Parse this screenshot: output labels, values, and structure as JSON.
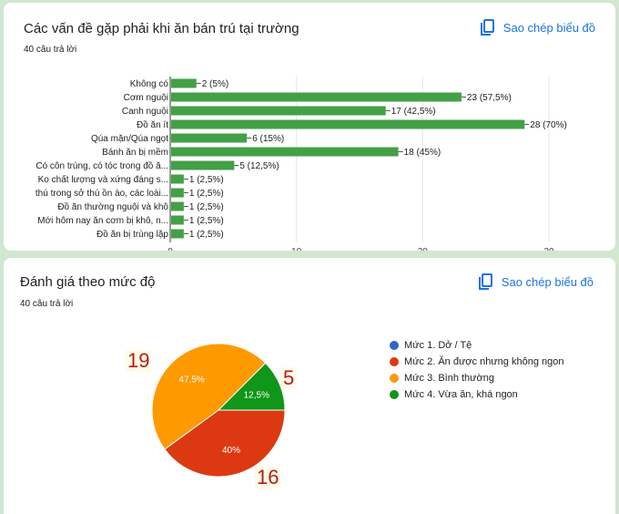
{
  "colors": {
    "accent": "#1a73e8",
    "bar": "#43a047",
    "annotation": "#b71c1c"
  },
  "card1": {
    "title": "Các vấn đề gặp phải khi ăn bán trú tại trường",
    "responses": "40 câu trả lời",
    "copy_label": "Sao chép biểu đồ",
    "copy_icon": "copy-icon"
  },
  "card2": {
    "title": "Đánh giá theo mức độ",
    "responses": "40 câu trả lời",
    "copy_label": "Sao chép biểu đồ",
    "copy_icon": "copy-icon",
    "annotations": [
      "19",
      "5",
      "16"
    ]
  },
  "chart_data": [
    {
      "type": "bar",
      "orientation": "horizontal",
      "categories": [
        "Không có",
        "Cơm nguội",
        "Canh nguội",
        "Đồ ăn ít",
        "Qúa mặn/Qúa ngọt",
        "Bánh ăn bị mềm",
        "Có côn trùng, có tóc trong đồ ă...",
        "Ko chất lượng và xứng đáng s...",
        "thú trong sở thú ồn ào, các loài...",
        "Đồ ăn thường nguội và khô",
        "Mới hôm nay ăn cơm bị khô, n...",
        "Đồ ăn bị trùng lặp"
      ],
      "values": [
        2,
        23,
        17,
        28,
        6,
        18,
        5,
        1,
        1,
        1,
        1,
        1
      ],
      "data_labels": [
        "2 (5%)",
        "23 (57,5%)",
        "17 (42,5%)",
        "28 (70%)",
        "6 (15%)",
        "18 (45%)",
        "5 (12,5%)",
        "1 (2,5%)",
        "1 (2,5%)",
        "1 (2,5%)",
        "1 (2,5%)",
        "1 (2,5%)"
      ],
      "xlim": [
        0,
        30
      ],
      "xticks": [
        "0",
        "10",
        "20",
        "30"
      ],
      "grid": true,
      "color": "#43a047"
    },
    {
      "type": "pie",
      "categories": [
        "Mức 1. Dở / Tệ",
        "Mức 2. Ăn được nhưng không ngon",
        "Mức 3. Bình thường",
        "Mức 4. Vừa ăn, khá ngon"
      ],
      "values": [
        0,
        16,
        19,
        5
      ],
      "data_labels": [
        "",
        "40%",
        "47,5%",
        "12,5%"
      ],
      "colors": [
        "#3366cc",
        "#dc3912",
        "#ff9900",
        "#109618"
      ],
      "legend": "right"
    }
  ]
}
